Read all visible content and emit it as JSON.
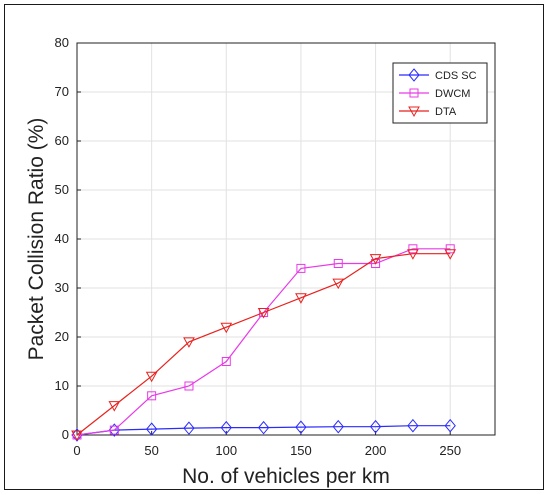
{
  "chart_data": {
    "type": "line",
    "title": "",
    "xlabel": "No. of vehicles per km",
    "ylabel": "Packet Collision Ratio (%)",
    "xlim": [
      0,
      280
    ],
    "ylim": [
      0,
      80
    ],
    "xticks": [
      0,
      50,
      100,
      150,
      200,
      250
    ],
    "yticks": [
      0,
      10,
      20,
      30,
      40,
      50,
      60,
      70,
      80
    ],
    "grid": true,
    "legend_position": "top-right",
    "x": [
      0,
      25,
      50,
      75,
      100,
      125,
      150,
      175,
      200,
      225,
      250
    ],
    "series": [
      {
        "name": "CDS SC",
        "color": "#2b2bff",
        "marker": "diamond",
        "values": [
          0,
          1,
          1.2,
          1.4,
          1.5,
          1.5,
          1.6,
          1.7,
          1.7,
          1.9,
          1.9
        ]
      },
      {
        "name": "DWCM",
        "color": "#e83ae8",
        "marker": "square",
        "values": [
          0,
          1,
          8,
          10,
          15,
          25,
          34,
          35,
          35,
          38,
          38
        ]
      },
      {
        "name": "DTA",
        "color": "#e8221e",
        "marker": "triangle-down",
        "values": [
          0,
          6,
          12,
          19,
          22,
          25,
          28,
          31,
          36,
          37,
          37
        ]
      }
    ]
  }
}
